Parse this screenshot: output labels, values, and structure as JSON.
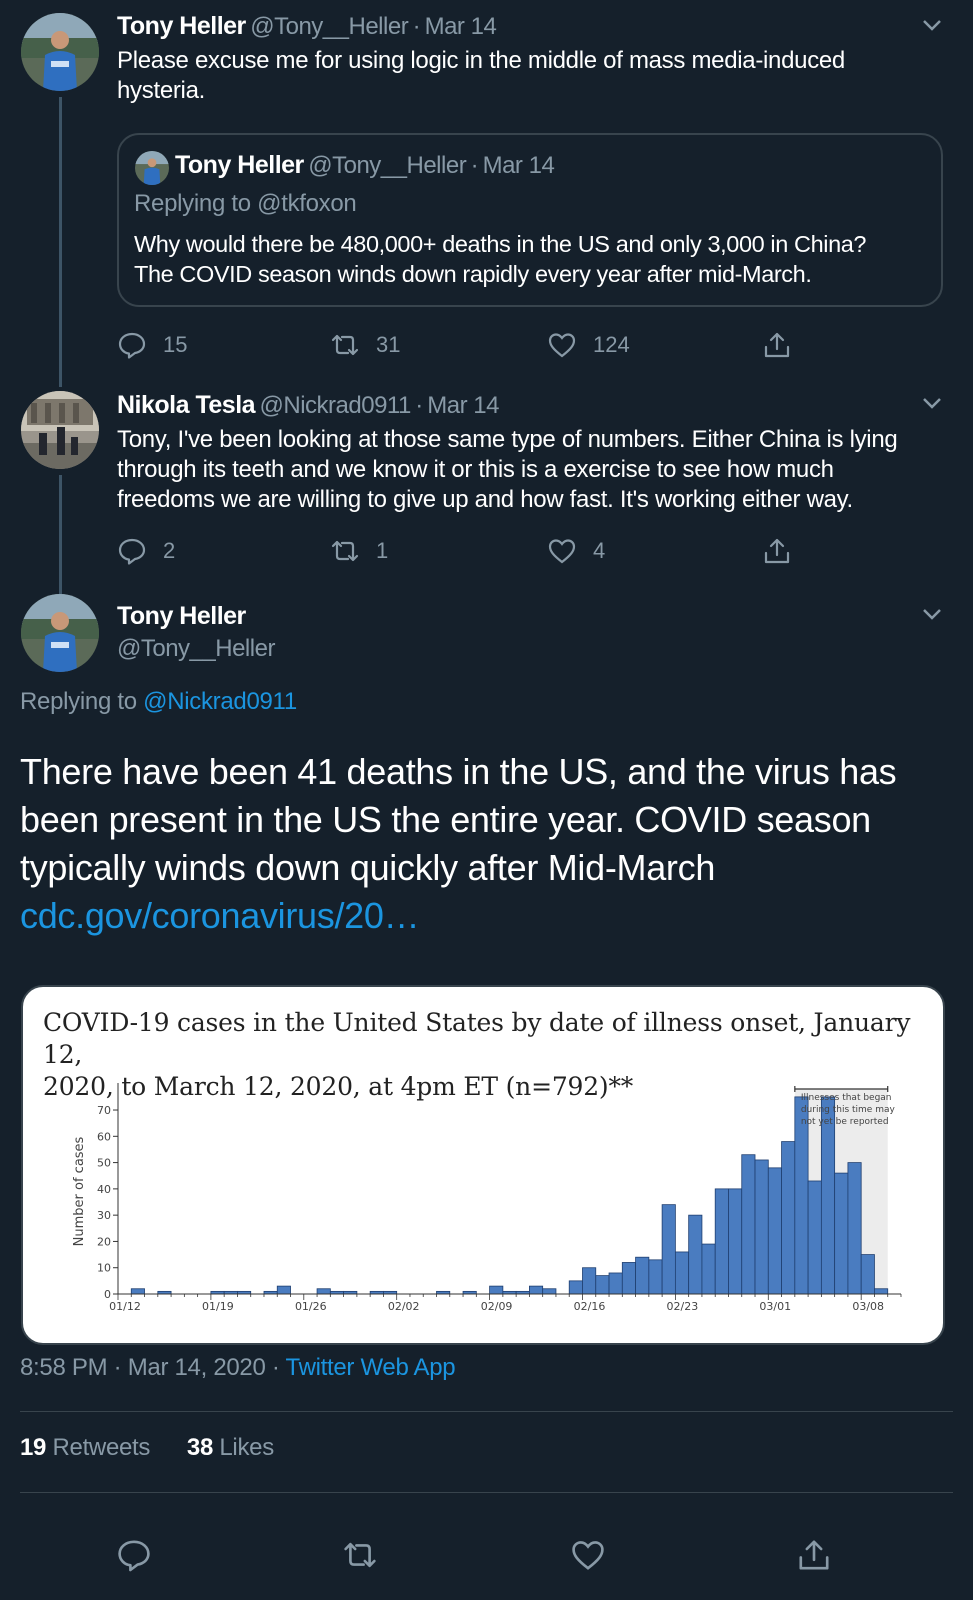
{
  "tweet1": {
    "name": "Tony Heller",
    "handle": "@Tony__Heller",
    "sep": "·",
    "date": "Mar 14",
    "text_line1": "Please excuse me for using logic in the middle of mass media-induced",
    "text_line2": "hysteria.",
    "quote": {
      "name": "Tony Heller",
      "handle": "@Tony__Heller",
      "sep": "·",
      "date": "Mar 14",
      "replying": "Replying to @tkfoxon",
      "line1": "Why would there be 480,000+ deaths in the US and only 3,000 in China?",
      "line2": "The COVID season winds down rapidly every year after mid-March."
    },
    "replies": "15",
    "retweets": "31",
    "likes": "124"
  },
  "tweet2": {
    "name": "Nikola Tesla",
    "handle": "@Nickrad0911",
    "sep": "·",
    "date": "Mar 14",
    "line1": "Tony, I've been looking at those same type of numbers.  Either China is lying",
    "line2": "through its teeth and we know it or this is a exercise to see how much",
    "line3": "freedoms we are willing to give up and how fast. It's working either way.",
    "replies": "2",
    "retweets": "1",
    "likes": "4"
  },
  "main": {
    "name": "Tony Heller",
    "handle": "@Tony__Heller",
    "replying_prefix": "Replying to ",
    "replying_handle": "@Nickrad0911",
    "line1": "There have been 41 deaths in the US, and the virus has",
    "line2": "been present in the US the entire year. COVID season",
    "line3": "typically winds down quickly after Mid-March",
    "link": "cdc.gov/coronavirus/20…",
    "timestamp": "8:58 PM · Mar 14, 2020 · ",
    "source": "Twitter Web App",
    "retweets_count": "19",
    "retweets_label": "Retweets",
    "likes_count": "38",
    "likes_label": "Likes"
  },
  "colors": {
    "accent": "#1b95e0",
    "bar": "#4a7cc0",
    "background": "#15202b"
  },
  "chart_data": {
    "type": "bar",
    "title_line1": "COVID-19 cases in the United States by date of illness onset, January 12,",
    "title_line2": "2020, to March 12, 2020, at 4pm ET (n=792)**",
    "ylabel": "Number of cases",
    "xlabel": "",
    "ylim": [
      0,
      78
    ],
    "yticks": [
      "0",
      "10",
      "20",
      "30",
      "40",
      "50",
      "60",
      "70"
    ],
    "xticks": [
      "01/12",
      "01/19",
      "01/26",
      "02/02",
      "02/09",
      "02/16",
      "02/23",
      "03/01",
      "03/08"
    ],
    "annotation": [
      "Illnesses that began",
      "during this time may",
      "not yet be reported"
    ],
    "values": [
      0,
      2,
      0,
      1,
      0,
      0,
      0,
      1,
      1,
      1,
      0,
      1,
      3,
      0,
      0,
      2,
      1,
      1,
      0,
      1,
      1,
      0,
      0,
      0,
      1,
      0,
      1,
      0,
      3,
      1,
      1,
      3,
      2,
      0,
      5,
      10,
      7,
      8,
      12,
      14,
      13,
      34,
      16,
      30,
      19,
      40,
      40,
      53,
      51,
      48,
      58,
      75,
      43,
      75,
      46,
      50,
      15,
      2,
      0
    ],
    "shaded_region_start_index": 51,
    "shaded_region_end_index": 58,
    "grid": false,
    "legend": "none"
  }
}
